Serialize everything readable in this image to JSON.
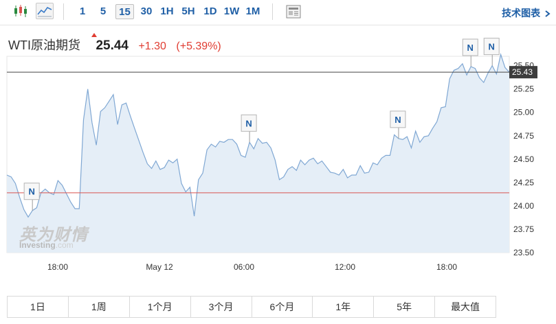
{
  "toolbar": {
    "timeframes": [
      "1",
      "5",
      "15",
      "30",
      "1H",
      "5H",
      "1D",
      "1W",
      "1M"
    ],
    "active_timeframe": "15",
    "tech_chart_label": "技术图表",
    "icons": [
      "candlestick-icon",
      "line-chart-icon",
      "news-icon"
    ]
  },
  "quote": {
    "name": "WTI原油期货",
    "price": "25.44",
    "change": "+1.30",
    "change_pct": "(+5.39%)",
    "up_color": "#e03c31"
  },
  "watermark": {
    "brand_cn": "英为财情",
    "brand_en": "Investing",
    "brand_suffix": ".com"
  },
  "ranges": [
    "1日",
    "1周",
    "1个月",
    "3个月",
    "6个月",
    "1年",
    "5年",
    "最大值"
  ],
  "chart_data": {
    "type": "area",
    "ylim": [
      23.5,
      25.6
    ],
    "y_ticks": [
      "25.50",
      "25.25",
      "25.00",
      "24.75",
      "24.50",
      "24.25",
      "24.00",
      "23.75",
      "23.50"
    ],
    "x_ticks": [
      "18:00",
      "May 12",
      "06:00",
      "12:00",
      "18:00"
    ],
    "last_price_label": "25.43",
    "last_price": 25.43,
    "previous_close": 24.14,
    "line_color": "#7fa7d3",
    "fill_color": "#e5eef7",
    "prev_close_color": "#d9534f",
    "news_flags": [
      {
        "label": "N"
      },
      {
        "label": "N"
      },
      {
        "label": "N"
      },
      {
        "label": "N"
      },
      {
        "label": "N"
      }
    ],
    "series": [
      {
        "values": [
          24.33,
          24.31,
          24.24,
          24.09,
          23.96,
          23.88,
          23.95,
          23.98,
          24.14,
          24.18,
          24.14,
          24.12,
          24.27,
          24.22,
          24.13,
          24.04,
          23.97,
          23.97,
          24.92,
          25.25,
          24.89,
          24.65,
          25.01,
          25.05,
          25.12,
          25.19,
          24.87,
          25.08,
          25.1,
          24.96,
          24.83,
          24.7,
          24.57,
          24.45,
          24.4,
          24.48,
          24.39,
          24.41,
          24.49,
          24.46,
          24.5,
          24.24,
          24.15,
          24.2,
          23.89,
          24.28,
          24.35,
          24.6,
          24.66,
          24.63,
          24.69,
          24.68,
          24.71,
          24.71,
          24.66,
          24.54,
          24.52,
          24.68,
          24.61,
          24.72,
          24.67,
          24.68,
          24.62,
          24.49,
          24.28,
          24.31,
          24.39,
          24.42,
          24.38,
          24.49,
          24.44,
          24.49,
          24.51,
          24.45,
          24.48,
          24.42,
          24.36,
          24.35,
          24.33,
          24.39,
          24.3,
          24.33,
          24.33,
          24.43,
          24.35,
          24.36,
          24.46,
          24.44,
          24.51,
          24.54,
          24.54,
          24.76,
          24.72,
          24.71,
          24.74,
          24.62,
          24.8,
          24.68,
          24.74,
          24.75,
          24.83,
          24.9,
          25.05,
          25.06,
          25.36,
          25.45,
          25.47,
          25.52,
          25.4,
          25.49,
          25.47,
          25.37,
          25.32,
          25.42,
          25.5,
          25.41,
          25.62,
          25.48,
          25.43
        ]
      }
    ]
  }
}
